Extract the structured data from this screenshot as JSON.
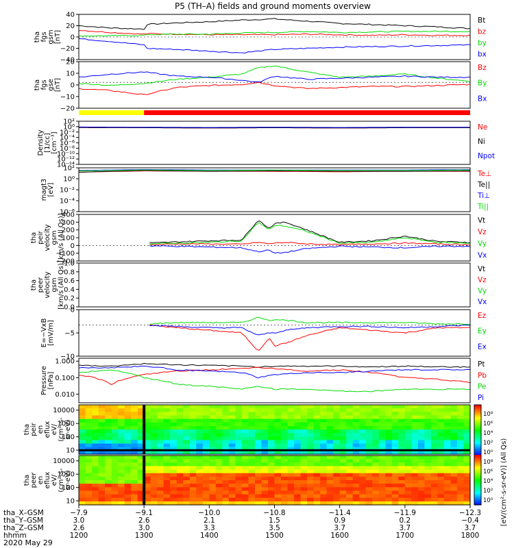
{
  "title": "P5 (TH–A) fields and ground moments overview",
  "date_label": "2020 May 29",
  "colors": {
    "black": "#000000",
    "red": "#ff0000",
    "green": "#00dd00",
    "blue": "#0000ff",
    "yellow": "#ffff00"
  },
  "chart_data": [
    {
      "type": "line",
      "panel": "fgs_gsm",
      "ylabel_lines": [
        "tha",
        "fgs",
        "gsm",
        "[nT]"
      ],
      "ylim": [
        -40,
        40
      ],
      "yticks": [
        "40",
        "20",
        "0",
        "−20",
        "−40"
      ],
      "x": [
        1200,
        1230,
        1260,
        1300,
        1330,
        1400,
        1430,
        1500,
        1530,
        1600,
        1630,
        1700,
        1730,
        1800
      ],
      "series": [
        {
          "name": "Bt",
          "color": "black",
          "values": [
            20,
            16,
            14,
            22,
            25,
            27,
            30,
            32,
            28,
            24,
            22,
            20,
            18,
            15
          ]
        },
        {
          "name": "bz",
          "color": "red",
          "values": [
            12,
            8,
            5,
            6,
            5,
            4,
            4,
            4,
            5,
            4,
            3,
            4,
            3,
            3
          ]
        },
        {
          "name": "by",
          "color": "green",
          "values": [
            2,
            2,
            3,
            4,
            5,
            5,
            7,
            8,
            10,
            8,
            9,
            10,
            10,
            10
          ]
        },
        {
          "name": "bx",
          "color": "blue",
          "values": [
            -3,
            -8,
            -14,
            -20,
            -22,
            -25,
            -28,
            -22,
            -20,
            -18,
            -17,
            -16,
            -15,
            -14
          ]
        }
      ]
    },
    {
      "type": "line",
      "panel": "fgs_gse",
      "ylabel_lines": [
        "tha",
        "fgs",
        "gse",
        "[nT]"
      ],
      "ylim": [
        -25,
        20
      ],
      "yticks": [
        "20",
        "10",
        "0",
        "−10",
        "−20"
      ],
      "x": [
        1200,
        1230,
        1300,
        1330,
        1400,
        1430,
        1445,
        1500,
        1530,
        1600,
        1630,
        1700,
        1730,
        1800
      ],
      "series": [
        {
          "name": "Bz",
          "color": "red",
          "values": [
            -6,
            -8,
            -12,
            -5,
            -3,
            -2,
            0,
            -3,
            -6,
            -5,
            -4,
            -4,
            -3,
            -2
          ]
        },
        {
          "name": "By",
          "color": "green",
          "values": [
            -1,
            -3,
            -1,
            3,
            5,
            8,
            14,
            16,
            10,
            5,
            6,
            8,
            4,
            1
          ]
        },
        {
          "name": "Bx",
          "color": "blue",
          "values": [
            5,
            8,
            10,
            6,
            5,
            2,
            0,
            6,
            3,
            4,
            5,
            6,
            5,
            5
          ]
        }
      ]
    },
    {
      "type": "line",
      "panel": "density",
      "ylabel_lines": [
        "Density",
        "[1/cc]",
        "[cm⁻³]"
      ],
      "ylim": [
        -15,
        3
      ],
      "ylog": true,
      "yticks": [
        "10²",
        "10⁰",
        "10⁻²",
        "10⁻⁴",
        "10⁻⁶",
        "10⁻⁸",
        "10⁻¹⁰",
        "10⁻¹²",
        "10⁻¹⁴"
      ],
      "x": [
        1200,
        1300,
        1400,
        1500,
        1600,
        1700,
        1800
      ],
      "series": [
        {
          "name": "Ne",
          "color": "red",
          "values": [
            0.4,
            0.3,
            0.2,
            0.3,
            0.2,
            0.3,
            0.3
          ]
        },
        {
          "name": "Ni",
          "color": "black",
          "values": [
            0.4,
            0.3,
            0.2,
            0.3,
            0.2,
            0.3,
            0.3
          ]
        },
        {
          "name": "Npot",
          "color": "blue",
          "values": [
            0.6,
            0.5,
            0.4,
            0.5,
            0.4,
            0.5,
            0.5
          ]
        }
      ]
    },
    {
      "type": "line",
      "panel": "temperature",
      "ylabel_lines": [
        "magt3",
        "[eV]"
      ],
      "ylim": [
        -7,
        3
      ],
      "ylog": true,
      "yticks": [
        "10²",
        "10⁰",
        "10⁻²",
        "10⁻⁴",
        "10⁻⁶"
      ],
      "x": [
        1200,
        1300,
        1400,
        1500,
        1600,
        1700,
        1800
      ],
      "series": [
        {
          "name": "Te⊥",
          "color": "red",
          "values": [
            2.0,
            2.3,
            2.2,
            2.2,
            2.1,
            2.2,
            2.2
          ]
        },
        {
          "name": "Te||",
          "color": "black",
          "values": [
            2.0,
            2.4,
            2.2,
            2.3,
            2.2,
            2.2,
            2.3
          ]
        },
        {
          "name": "Ti⊥",
          "color": "blue",
          "values": [
            2.4,
            2.6,
            2.5,
            2.5,
            2.5,
            2.5,
            2.6
          ]
        },
        {
          "name": "Ti||",
          "color": "green",
          "values": [
            2.3,
            2.5,
            2.4,
            2.5,
            2.4,
            2.4,
            2.5
          ]
        }
      ]
    },
    {
      "type": "line",
      "panel": "peir_velocity",
      "ylabel_lines": [
        "tha",
        "peir",
        "velocity",
        "gsm",
        "[km/s (All Qs)]"
      ],
      "ylim": [
        -200,
        400
      ],
      "yticks": [
        "400",
        "300",
        "200",
        "100",
        "0",
        "−100",
        "−200"
      ],
      "x": [
        1305,
        1330,
        1400,
        1430,
        1445,
        1455,
        1500,
        1510,
        1530,
        1600,
        1630,
        1700,
        1730,
        1800
      ],
      "series": [
        {
          "name": "Vt",
          "color": "black",
          "values": [
            30,
            45,
            60,
            70,
            330,
            220,
            280,
            300,
            200,
            40,
            60,
            120,
            50,
            40
          ]
        },
        {
          "name": "Vz",
          "color": "red",
          "values": [
            10,
            20,
            20,
            15,
            40,
            20,
            30,
            40,
            20,
            10,
            20,
            30,
            20,
            10
          ]
        },
        {
          "name": "Vy",
          "color": "green",
          "values": [
            20,
            30,
            40,
            60,
            300,
            200,
            260,
            250,
            180,
            30,
            40,
            100,
            40,
            30
          ]
        },
        {
          "name": "Vx",
          "color": "blue",
          "values": [
            -5,
            -10,
            -20,
            -30,
            -80,
            -60,
            -100,
            -90,
            -40,
            -10,
            -20,
            -30,
            -10,
            -10
          ]
        }
      ]
    },
    {
      "type": "line",
      "panel": "peer_velocity",
      "ylabel_lines": [
        "tha",
        "peer",
        "velocity",
        "gsm",
        "[km/s (All Qs)]"
      ],
      "ylim": [
        0,
        1
      ],
      "yticks": [
        "1.0",
        "0.8",
        "0.6",
        "0.4",
        "0.2",
        "0.0"
      ],
      "series": [
        {
          "name": "Vt",
          "color": "black"
        },
        {
          "name": "Vz",
          "color": "red"
        },
        {
          "name": "Vy",
          "color": "green"
        },
        {
          "name": "Vx",
          "color": "blue"
        }
      ]
    },
    {
      "type": "line",
      "panel": "efield",
      "ylabel_lines": [
        "E=−VxB",
        "[mV/m]"
      ],
      "ylim": [
        -12,
        6
      ],
      "yticks": [
        "0",
        "−5",
        "−10"
      ],
      "x": [
        1305,
        1330,
        1400,
        1430,
        1445,
        1455,
        1500,
        1510,
        1530,
        1600,
        1630,
        1700,
        1730,
        1800
      ],
      "series": [
        {
          "name": "Ez",
          "color": "red",
          "values": [
            0,
            -1,
            -2,
            -3,
            -10,
            -5,
            -8,
            -7,
            -4,
            -1,
            -2,
            -3,
            -1,
            -1
          ]
        },
        {
          "name": "Ey",
          "color": "green",
          "values": [
            0.5,
            1,
            1,
            1,
            3,
            2,
            2,
            2,
            1,
            1,
            1,
            1,
            0.5,
            0.5
          ]
        },
        {
          "name": "Ex",
          "color": "blue",
          "values": [
            0,
            -0.5,
            -1,
            -1,
            -4,
            -3,
            -3,
            -2,
            -1,
            -0.5,
            -0.5,
            -1,
            -0.5,
            0
          ]
        }
      ]
    },
    {
      "type": "line",
      "panel": "pressure",
      "ylabel_lines": [
        "Pressure",
        "[nPa]"
      ],
      "ylim": [
        0.003,
        1.5
      ],
      "ylog": true,
      "yticks": [
        "1.000",
        "0.100",
        "0.010"
      ],
      "x": [
        1200,
        1230,
        1300,
        1330,
        1400,
        1430,
        1445,
        1500,
        1530,
        1600,
        1630,
        1700,
        1730,
        1800
      ],
      "series": [
        {
          "name": "Pt",
          "color": "black",
          "values": [
            0.55,
            0.5,
            0.7,
            0.6,
            0.55,
            0.5,
            0.45,
            0.5,
            0.5,
            0.5,
            0.45,
            0.5,
            0.45,
            0.45
          ]
        },
        {
          "name": "Pb",
          "color": "red",
          "values": [
            0.15,
            0.04,
            0.15,
            0.25,
            0.3,
            0.35,
            0.4,
            0.35,
            0.25,
            0.3,
            0.2,
            0.1,
            0.08,
            0.05
          ]
        },
        {
          "name": "Pe",
          "color": "green",
          "values": [
            0.2,
            0.3,
            0.1,
            0.04,
            0.03,
            0.02,
            0.03,
            0.02,
            0.02,
            0.015,
            0.015,
            0.02,
            0.02,
            0.02
          ]
        },
        {
          "name": "Pi",
          "color": "blue",
          "values": [
            0.4,
            0.4,
            0.5,
            0.3,
            0.25,
            0.2,
            0.1,
            0.15,
            0.2,
            0.2,
            0.25,
            0.3,
            0.3,
            0.3
          ]
        }
      ]
    },
    {
      "type": "heatmap",
      "panel": "peir_spectrogram",
      "ylabel_lines": [
        "tha",
        "peir",
        "en",
        "eflux",
        "eV/",
        "(cm²-s-",
        "sr-eV)"
      ],
      "ylog": true,
      "ylim": [
        5,
        25000
      ],
      "yticks": [
        "10000",
        "1000",
        "100",
        "10"
      ]
    },
    {
      "type": "heatmap",
      "panel": "peer_spectrogram",
      "ylabel_lines": [
        "tha",
        "peer",
        "en",
        "eflux",
        "eV/",
        "(cm²-s-",
        "sr-eV)"
      ],
      "ylog": true,
      "ylim": [
        5,
        25000
      ],
      "yticks": [
        "10000",
        "1000",
        "100",
        "10"
      ]
    }
  ],
  "colorbar": {
    "label": "[eV/(cm²-s-sr-eV)] (All Qs)",
    "ticks": [
      "10⁸",
      "10⁶",
      "10⁴",
      "10²",
      "10⁰",
      "10⁸",
      "10⁶",
      "10⁴",
      "10²",
      "10⁰"
    ]
  },
  "x_axis": {
    "rows": [
      {
        "label": "tha_X–GSM",
        "values": [
          "−7.9",
          "−9.1",
          "−10.0",
          "−10.8",
          "−11.4",
          "−11.9",
          "−12.3"
        ]
      },
      {
        "label": "tha_Y–GSM",
        "values": [
          "3.0",
          "2.6",
          "2.1",
          "1.5",
          "0.9",
          "0.2",
          "−0.4"
        ]
      },
      {
        "label": "tha_Z–GSM",
        "values": [
          "2.6",
          "3.0",
          "3.3",
          "3.5",
          "3.7",
          "3.7",
          "3.7"
        ]
      },
      {
        "label": "hhmm",
        "values": [
          "1200",
          "1300",
          "1400",
          "1500",
          "1600",
          "1700",
          "1800"
        ]
      }
    ]
  }
}
